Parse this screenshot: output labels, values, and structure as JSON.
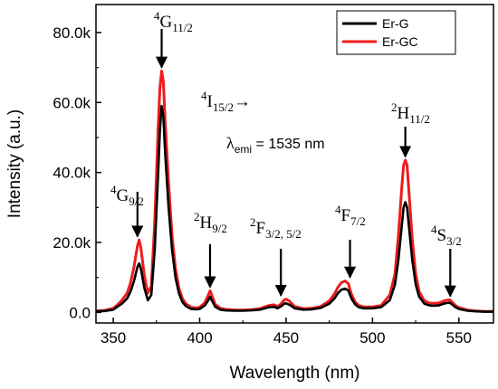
{
  "chart_data": {
    "type": "line",
    "xlabel": "Wavelength (nm)",
    "ylabel": "Intensity (a.u.)",
    "xlim": [
      340,
      570
    ],
    "ylim": [
      -3000,
      88000
    ],
    "xticks": [
      350,
      400,
      450,
      500,
      550
    ],
    "yticks": [
      0,
      20000,
      40000,
      60000,
      80000
    ],
    "xtick_labels": [
      "350",
      "400",
      "450",
      "500",
      "550"
    ],
    "ytick_labels": [
      "0.0",
      "20.0k",
      "40.0k",
      "60.0k",
      "80.0k"
    ],
    "grid": false,
    "legend_position": "top-right",
    "series": [
      {
        "name": "Er-G",
        "color": "#000000",
        "x": [
          340,
          345,
          350,
          352,
          355,
          358,
          360,
          362,
          364,
          365,
          366,
          368,
          370,
          372,
          374,
          376,
          377,
          378,
          379,
          380,
          382,
          384,
          386,
          388,
          390,
          392,
          395,
          398,
          400,
          403,
          405,
          406,
          407,
          409,
          412,
          415,
          420,
          425,
          430,
          435,
          440,
          443,
          445,
          447,
          449,
          450,
          452,
          455,
          460,
          465,
          470,
          475,
          478,
          480,
          482,
          484,
          486,
          487,
          488,
          490,
          492,
          495,
          500,
          505,
          510,
          513,
          515,
          517,
          518,
          519,
          520,
          521,
          523,
          525,
          527,
          530,
          533,
          535,
          538,
          540,
          542,
          544,
          545,
          546,
          548,
          550,
          555,
          560,
          565,
          570
        ],
        "y": [
          300,
          400,
          800,
          1500,
          2500,
          4000,
          6000,
          9000,
          13000,
          14000,
          12500,
          7000,
          3500,
          5000,
          18000,
          40000,
          52000,
          59000,
          56000,
          46000,
          30000,
          18000,
          10000,
          5500,
          3000,
          1800,
          1000,
          900,
          1000,
          2000,
          3500,
          4500,
          3500,
          1600,
          800,
          600,
          500,
          500,
          600,
          800,
          1500,
          1600,
          1200,
          1700,
          2500,
          2600,
          2200,
          1200,
          800,
          900,
          1300,
          2500,
          4000,
          5500,
          6500,
          6800,
          6300,
          5000,
          3800,
          2300,
          1500,
          1200,
          1200,
          1500,
          3500,
          8000,
          15000,
          25000,
          30000,
          31500,
          30000,
          25000,
          15000,
          8000,
          4500,
          2500,
          2000,
          1900,
          2000,
          2300,
          2600,
          2800,
          2700,
          2300,
          1500,
          1000,
          500,
          300,
          200,
          200
        ]
      },
      {
        "name": "Er-GC",
        "color": "#ee1c1c",
        "x": [
          340,
          345,
          350,
          352,
          355,
          358,
          360,
          362,
          364,
          365,
          366,
          368,
          370,
          372,
          374,
          376,
          377,
          378,
          379,
          380,
          382,
          384,
          386,
          388,
          390,
          392,
          395,
          398,
          400,
          403,
          405,
          406,
          407,
          409,
          412,
          415,
          420,
          425,
          430,
          435,
          440,
          443,
          445,
          447,
          449,
          450,
          452,
          455,
          460,
          465,
          470,
          475,
          478,
          480,
          482,
          484,
          486,
          487,
          488,
          490,
          492,
          495,
          500,
          505,
          510,
          513,
          515,
          517,
          518,
          519,
          520,
          521,
          523,
          525,
          527,
          530,
          533,
          535,
          538,
          540,
          542,
          544,
          545,
          546,
          548,
          550,
          555,
          560,
          565,
          570
        ],
        "y": [
          400,
          600,
          1200,
          2000,
          3500,
          5500,
          8500,
          13000,
          19000,
          20700,
          18500,
          10500,
          5500,
          7500,
          26000,
          53000,
          64000,
          69000,
          66000,
          55000,
          37000,
          22000,
          12500,
          7000,
          4000,
          2500,
          1500,
          1300,
          1500,
          2800,
          5000,
          6200,
          5000,
          2300,
          1200,
          900,
          700,
          700,
          800,
          1100,
          2000,
          2200,
          1700,
          2400,
          3600,
          3800,
          3200,
          1700,
          1100,
          1200,
          1700,
          3300,
          5300,
          7200,
          8500,
          9000,
          8300,
          6500,
          5000,
          3000,
          2000,
          1600,
          1600,
          2000,
          5000,
          11000,
          22000,
          36000,
          42000,
          43500,
          42000,
          35000,
          21000,
          11000,
          6000,
          3300,
          2700,
          2600,
          2700,
          3000,
          3400,
          3600,
          3500,
          3000,
          2000,
          1400,
          700,
          400,
          300,
          300
        ]
      }
    ],
    "annotations": [
      {
        "sup": "4",
        "main": "G",
        "sub": "9/2",
        "arrow_x": 364,
        "arrow_tip_y": 20700
      },
      {
        "sup": "4",
        "main": "G",
        "sub": "11/2",
        "arrow_x": 378,
        "arrow_tip_y": 69000
      },
      {
        "sup": "2",
        "main": "H",
        "sub": "9/2",
        "arrow_x": 406,
        "arrow_tip_y": 6200
      },
      {
        "sup": "2",
        "main": "F",
        "sub": "3/2, 5/2",
        "arrow_x": 447,
        "arrow_tip_y": 3800
      },
      {
        "sup": "4",
        "main": "F",
        "sub": "7/2",
        "arrow_x": 487,
        "arrow_tip_y": 9000
      },
      {
        "sup": "2",
        "main": "H",
        "sub": "11/2",
        "arrow_x": 519,
        "arrow_tip_y": 43500
      },
      {
        "sup": "4",
        "main": "S",
        "sub": "3/2",
        "arrow_x": 545,
        "arrow_tip_y": 3600
      }
    ],
    "ground_state": {
      "sup": "4",
      "main": "I",
      "sub": "15/2",
      "arrow": "→"
    },
    "emission": {
      "symbol": "λ",
      "sub": "emi",
      "text": " = 1535 nm"
    }
  }
}
